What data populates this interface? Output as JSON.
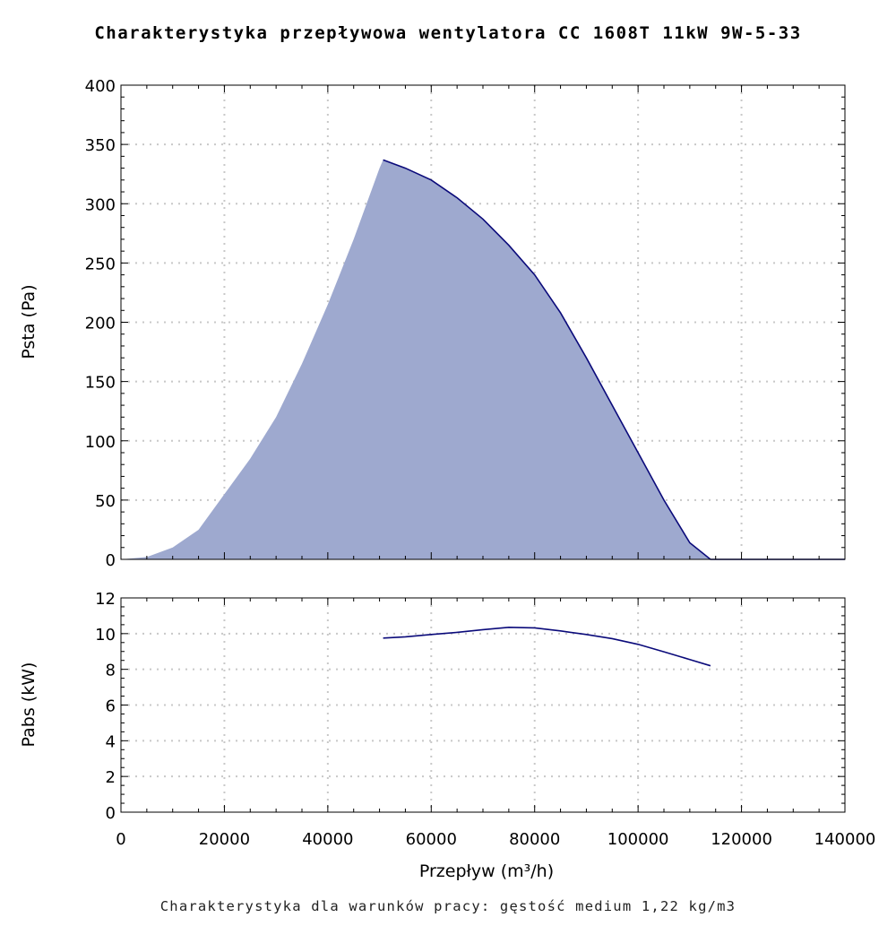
{
  "title": "Charakterystyka przepływowa wentylatora CC 1608T 11kW 9W-5-33",
  "footer": "Charakterystyka dla warunków pracy: gęstość medium 1,22 kg/m3",
  "chart_data": [
    {
      "type": "area",
      "ylabel": "Psta (Pa)",
      "xlim": [
        0,
        140000
      ],
      "ylim": [
        0,
        400
      ],
      "grid": true,
      "fill_color": "#9ea9cf",
      "line_color": "#0a0a7a",
      "x_ticks": [
        "0",
        "20000",
        "40000",
        "60000",
        "80000",
        "100000",
        "120000",
        "140000"
      ],
      "y_ticks": [
        "0",
        "50",
        "100",
        "150",
        "200",
        "250",
        "300",
        "350",
        "400"
      ],
      "fill_region": {
        "lower_bound": [
          [
            0,
            0
          ],
          [
            5000,
            2
          ],
          [
            10000,
            10
          ],
          [
            15000,
            25
          ],
          [
            20000,
            55
          ],
          [
            25000,
            85
          ],
          [
            30000,
            120
          ],
          [
            35000,
            165
          ],
          [
            40000,
            215
          ],
          [
            45000,
            270
          ],
          [
            50000,
            330
          ],
          [
            50700,
            337
          ]
        ],
        "x_end": 114000
      },
      "series": [
        {
          "values": [
            [
              50700,
              337
            ],
            [
              55000,
              330
            ],
            [
              60000,
              320
            ],
            [
              65000,
              305
            ],
            [
              70000,
              287
            ],
            [
              75000,
              265
            ],
            [
              80000,
              240
            ],
            [
              85000,
              208
            ],
            [
              90000,
              170
            ],
            [
              95000,
              130
            ],
            [
              100000,
              90
            ],
            [
              105000,
              50
            ],
            [
              110000,
              14
            ],
            [
              114000,
              0
            ],
            [
              140000,
              0
            ]
          ]
        }
      ]
    },
    {
      "type": "line",
      "xlabel": "Przepływ (m³/h)",
      "ylabel": "Pabs (kW)",
      "xlim": [
        0,
        140000
      ],
      "ylim": [
        0,
        12
      ],
      "grid": true,
      "line_color": "#0a0a7a",
      "x_ticks": [
        "0",
        "20000",
        "40000",
        "60000",
        "80000",
        "100000",
        "120000",
        "140000"
      ],
      "y_ticks": [
        "0",
        "2",
        "4",
        "6",
        "8",
        "10",
        "12"
      ],
      "series": [
        {
          "values": [
            [
              50700,
              9.75
            ],
            [
              55000,
              9.82
            ],
            [
              60000,
              9.95
            ],
            [
              65000,
              10.07
            ],
            [
              70000,
              10.22
            ],
            [
              75000,
              10.35
            ],
            [
              80000,
              10.32
            ],
            [
              85000,
              10.15
            ],
            [
              90000,
              9.95
            ],
            [
              95000,
              9.72
            ],
            [
              100000,
              9.4
            ],
            [
              105000,
              8.98
            ],
            [
              110000,
              8.55
            ],
            [
              114000,
              8.2
            ]
          ]
        }
      ]
    }
  ]
}
